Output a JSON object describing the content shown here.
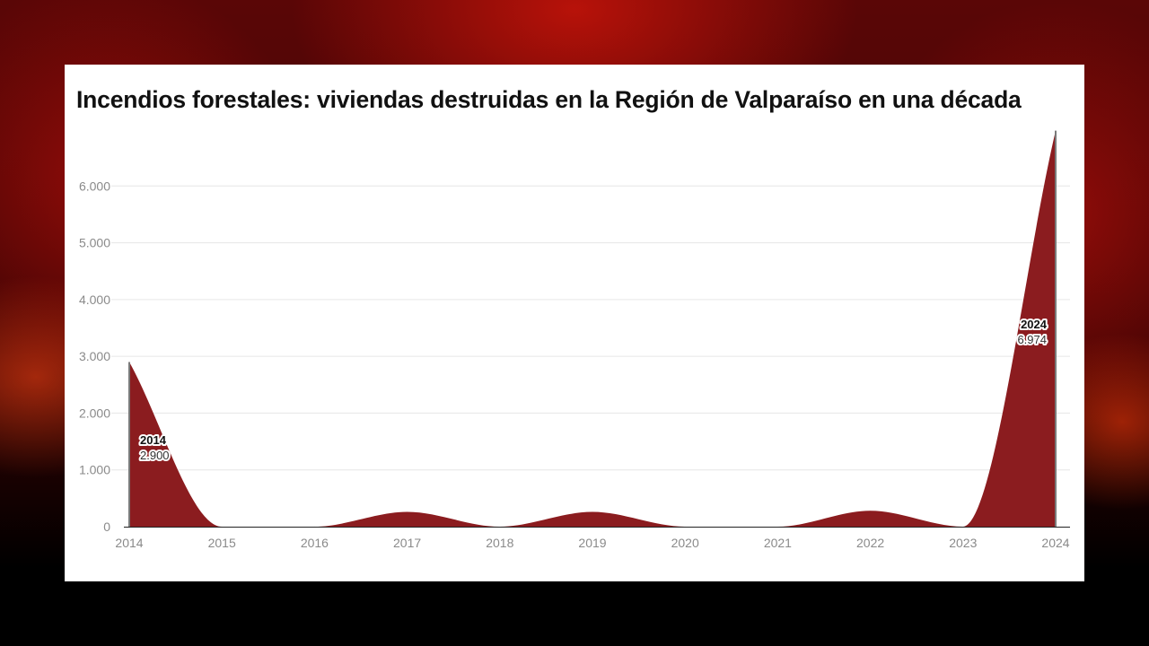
{
  "background": {
    "description_colors": [
      "#5a0606",
      "#c81e0a",
      "#000000"
    ]
  },
  "chart_data": {
    "type": "area",
    "title": "Incendios forestales: viviendas destruidas en la Región de Valparaíso en una década",
    "xlabel": "",
    "ylabel": "",
    "x": [
      "2014",
      "2015",
      "2016",
      "2017",
      "2018",
      "2019",
      "2020",
      "2021",
      "2022",
      "2023",
      "2024"
    ],
    "series": [
      {
        "values": [
          2900,
          0,
          0,
          260,
          0,
          260,
          0,
          0,
          280,
          0,
          6974
        ]
      }
    ],
    "ylim": [
      0,
      7000
    ],
    "y_ticks": [
      0,
      1000,
      2000,
      3000,
      4000,
      5000,
      6000
    ],
    "y_tick_labels": [
      "0",
      "1.000",
      "2.000",
      "3.000",
      "4.000",
      "5.000",
      "6.000"
    ],
    "grid": true,
    "legend": "none",
    "fill_color": "#8b1c1f",
    "annotations": [
      {
        "x": "2014",
        "label": "2014",
        "value_text": "2.900"
      },
      {
        "x": "2024",
        "label": "2024",
        "value_text": "6.974"
      }
    ]
  }
}
